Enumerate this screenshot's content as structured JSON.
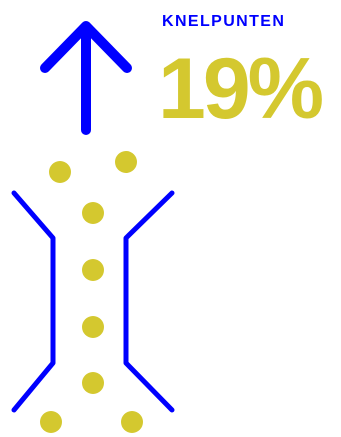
{
  "stat": {
    "label": "KNELPUNTEN",
    "value": "19%"
  },
  "icons": {
    "arrow": "arrow-up-icon",
    "bottleneck": "bottleneck-icon"
  },
  "colors": {
    "primary_blue": "#0000ff",
    "accent_yellow": "#d4c82f"
  }
}
